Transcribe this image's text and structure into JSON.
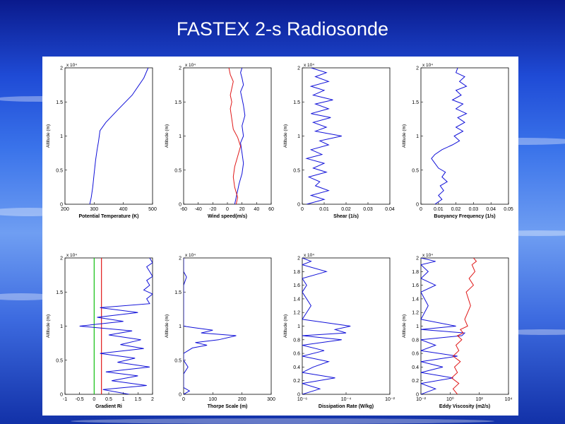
{
  "slide": {
    "title": "FASTEX 2-s Radiosonde"
  },
  "colors": {
    "blue": "#1010d8",
    "red": "#e01818",
    "green": "#10c010"
  },
  "chart_data": [
    {
      "type": "line",
      "xlabel": "Potential Temperature (K)",
      "ylabel": "Altitude (m)",
      "y_multiplier": "x 10⁴",
      "xlim": [
        200,
        500
      ],
      "ylim": [
        0,
        2
      ],
      "xticks": [
        "200",
        "300",
        "400",
        "500"
      ],
      "yticks": [
        "0",
        "0.5",
        "1",
        "1.5",
        "2"
      ],
      "series": [
        {
          "color": "#1010d8",
          "x": [
            285,
            290,
            295,
            300,
            305,
            310,
            315,
            320,
            340,
            380,
            430,
            470,
            485
          ],
          "y": [
            0,
            0.1,
            0.25,
            0.45,
            0.65,
            0.8,
            0.92,
            1.08,
            1.2,
            1.38,
            1.6,
            1.85,
            2.0
          ]
        }
      ]
    },
    {
      "type": "line",
      "xlabel": "Wind speed(m/s)",
      "ylabel": "Altitude (m)",
      "y_multiplier": "x 10⁴",
      "xlim": [
        -60,
        60
      ],
      "ylim": [
        0,
        2
      ],
      "xticks": [
        "-60",
        "-40",
        "-20",
        "0",
        "20",
        "40",
        "60"
      ],
      "yticks": [
        "0",
        "0.5",
        "1",
        "1.5",
        "2"
      ],
      "series": [
        {
          "color": "#1010d8",
          "x": [
            10,
            12,
            14,
            16,
            20,
            22,
            20,
            18,
            22,
            20,
            24,
            22,
            20,
            18,
            22,
            20,
            18,
            20
          ],
          "y": [
            0,
            0.1,
            0.2,
            0.3,
            0.45,
            0.6,
            0.75,
            0.9,
            1.0,
            1.15,
            1.3,
            1.45,
            1.55,
            1.65,
            1.75,
            1.85,
            1.93,
            2.0
          ]
        },
        {
          "color": "#e01818",
          "x": [
            12,
            14,
            10,
            8,
            10,
            14,
            18,
            14,
            8,
            6,
            4,
            6,
            4,
            6,
            8,
            4,
            2
          ],
          "y": [
            0,
            0.1,
            0.25,
            0.4,
            0.55,
            0.7,
            0.85,
            0.98,
            1.1,
            1.25,
            1.4,
            1.5,
            1.6,
            1.7,
            1.8,
            1.9,
            2.0
          ]
        }
      ]
    },
    {
      "type": "line",
      "xlabel": "Shear (1/s)",
      "ylabel": "Altitude (m)",
      "y_multiplier": "x 10⁴",
      "xlim": [
        0,
        0.04
      ],
      "ylim": [
        0,
        2
      ],
      "xticks": [
        "0",
        "0.01",
        "0.02",
        "0.03",
        "0.04"
      ],
      "yticks": [
        "0",
        "0.5",
        "1",
        "1.5",
        "2"
      ],
      "series": [
        {
          "color": "#1010d8",
          "x": [
            0.002,
            0.01,
            0.004,
            0.012,
            0.006,
            0.008,
            0.003,
            0.011,
            0.005,
            0.01,
            0.002,
            0.009,
            0.004,
            0.012,
            0.008,
            0.018,
            0.006,
            0.011,
            0.005,
            0.013,
            0.004,
            0.012,
            0.006,
            0.014,
            0.005,
            0.01,
            0.004,
            0.012,
            0.006,
            0.011,
            0.004
          ],
          "y": [
            0,
            0.07,
            0.13,
            0.2,
            0.27,
            0.33,
            0.4,
            0.47,
            0.53,
            0.6,
            0.67,
            0.73,
            0.8,
            0.87,
            0.93,
            1.0,
            1.07,
            1.13,
            1.2,
            1.27,
            1.33,
            1.4,
            1.47,
            1.53,
            1.6,
            1.67,
            1.73,
            1.8,
            1.87,
            1.93,
            2.0
          ]
        }
      ]
    },
    {
      "type": "line",
      "xlabel": "Buoyancy Frequency (1/s)",
      "ylabel": "Altitude (m)",
      "y_multiplier": "x 10⁴",
      "xlim": [
        0,
        0.05
      ],
      "ylim": [
        0,
        2
      ],
      "xticks": [
        "0",
        "0.01",
        "0.02",
        "0.03",
        "0.04",
        "0.05"
      ],
      "yticks": [
        "0",
        "0.5",
        "1",
        "1.5",
        "2"
      ],
      "series": [
        {
          "color": "#1010d8",
          "x": [
            0.008,
            0.012,
            0.01,
            0.013,
            0.011,
            0.015,
            0.012,
            0.014,
            0.01,
            0.008,
            0.006,
            0.008,
            0.012,
            0.018,
            0.022,
            0.019,
            0.024,
            0.02,
            0.025,
            0.021,
            0.026,
            0.02,
            0.024,
            0.018,
            0.023,
            0.02,
            0.026,
            0.022,
            0.025,
            0.02,
            0.021
          ],
          "y": [
            0,
            0.07,
            0.13,
            0.2,
            0.27,
            0.33,
            0.4,
            0.47,
            0.53,
            0.6,
            0.67,
            0.73,
            0.8,
            0.87,
            0.93,
            1.0,
            1.07,
            1.13,
            1.2,
            1.27,
            1.33,
            1.4,
            1.47,
            1.53,
            1.6,
            1.67,
            1.73,
            1.8,
            1.87,
            1.93,
            2.0
          ]
        }
      ]
    },
    {
      "type": "line",
      "xlabel": "Gradient Ri",
      "ylabel": "Altitude (m)",
      "y_multiplier": "x 10⁴",
      "xlim": [
        -1,
        2
      ],
      "ylim": [
        0,
        2
      ],
      "xticks": [
        "-1",
        "-0.5",
        "0",
        "0.5",
        "1",
        "1.5",
        "2"
      ],
      "yticks": [
        "0",
        "0.5",
        "1",
        "1.5",
        "2"
      ],
      "vlines": [
        {
          "x": 0,
          "color": "#10c010"
        },
        {
          "x": 0.25,
          "color": "#e01818"
        }
      ],
      "series": [
        {
          "color": "#1010d8",
          "x": [
            1.2,
            0.3,
            1.8,
            0.6,
            1.5,
            0.4,
            1.9,
            0.8,
            1.4,
            0.2,
            1.7,
            0.9,
            1.6,
            0.5,
            1.3,
            -0.5,
            1.0,
            0.1,
            1.5,
            0.2,
            1.9,
            1.8,
            2.0,
            1.7,
            1.9,
            1.8,
            2.0,
            1.9,
            1.8,
            2.0,
            1.9
          ],
          "y": [
            0,
            0.07,
            0.13,
            0.2,
            0.27,
            0.33,
            0.4,
            0.47,
            0.53,
            0.6,
            0.67,
            0.73,
            0.8,
            0.87,
            0.93,
            1.0,
            1.07,
            1.13,
            1.2,
            1.27,
            1.33,
            1.4,
            1.47,
            1.53,
            1.6,
            1.67,
            1.73,
            1.8,
            1.87,
            1.93,
            2.0
          ]
        }
      ]
    },
    {
      "type": "line",
      "xlabel": "Thorpe Scale (m)",
      "ylabel": "Altitude (m)",
      "y_multiplier": "x 10⁴",
      "xlim": [
        0,
        300
      ],
      "ylim": [
        0,
        2
      ],
      "xticks": [
        "0",
        "100",
        "200",
        "300"
      ],
      "yticks": [
        "0",
        "0.5",
        "1",
        "1.5",
        "2"
      ],
      "series": [
        {
          "color": "#1010d8",
          "x": [
            0,
            20,
            0,
            0,
            15,
            0,
            0,
            30,
            80,
            40,
            120,
            180,
            60,
            100,
            30,
            0,
            0,
            0,
            0,
            10,
            0,
            0
          ],
          "y": [
            0,
            0.05,
            0.1,
            0.3,
            0.4,
            0.5,
            0.6,
            0.68,
            0.72,
            0.76,
            0.8,
            0.86,
            0.9,
            0.94,
            0.98,
            1.0,
            1.2,
            1.5,
            1.6,
            1.72,
            1.8,
            2.0
          ]
        }
      ]
    },
    {
      "type": "line",
      "xlabel": "Dissipation Rate (W/kg)",
      "ylabel": "Altitude (m)",
      "y_multiplier": "x 10⁴",
      "xscale": "log",
      "xlim": [
        -6,
        -2
      ],
      "ylim": [
        0,
        2
      ],
      "xticks": [
        "10⁻⁶",
        "10⁻⁴",
        "10⁻²"
      ],
      "yticks": [
        "0",
        "0.2",
        "0.4",
        "0.6",
        "0.8",
        "1",
        "1.2",
        "1.4",
        "1.6",
        "1.8",
        "2"
      ],
      "series": [
        {
          "color": "#1010d8",
          "x": [
            -6,
            -5.2,
            -6,
            -4.5,
            -6,
            -5.5,
            -4.8,
            -6,
            -5.0,
            -6,
            -4.2,
            -6,
            -4.0,
            -4.5,
            -3.8,
            -6,
            -5.6,
            -6,
            -5.8,
            -6,
            -4.9,
            -6,
            -5.6,
            -6
          ],
          "y": [
            0,
            0.08,
            0.16,
            0.24,
            0.32,
            0.4,
            0.48,
            0.56,
            0.64,
            0.72,
            0.8,
            0.86,
            0.9,
            0.95,
            1.0,
            1.1,
            1.3,
            1.5,
            1.6,
            1.7,
            1.8,
            1.9,
            1.95,
            2.0
          ]
        }
      ]
    },
    {
      "type": "line",
      "xlabel": "Eddy Viscosity (m2/s)",
      "ylabel": "Altitude (m)",
      "y_multiplier": "x 10⁴",
      "xscale": "log",
      "xlim": [
        -2,
        4
      ],
      "ylim": [
        0,
        2
      ],
      "xticks": [
        "10⁻²",
        "10⁰",
        "10²",
        "10⁴"
      ],
      "yticks": [
        "0",
        "0.2",
        "0.4",
        "0.6",
        "0.8",
        "1",
        "1.2",
        "1.4",
        "1.6",
        "1.8",
        "2"
      ],
      "series": [
        {
          "color": "#1010d8",
          "x": [
            -2,
            -1,
            -2,
            0.2,
            -2,
            -0.5,
            -2,
            0.5,
            -2,
            -1,
            -2,
            0.8,
            1.0,
            -2,
            0.4,
            -2,
            -1.5,
            -2,
            -1,
            -2,
            -1.5,
            -2,
            -1,
            -2
          ],
          "y": [
            0,
            0.08,
            0.16,
            0.24,
            0.32,
            0.4,
            0.48,
            0.56,
            0.64,
            0.72,
            0.8,
            0.86,
            0.9,
            0.95,
            1.0,
            1.1,
            1.3,
            1.5,
            1.6,
            1.7,
            1.8,
            1.9,
            1.95,
            2.0
          ]
        },
        {
          "color": "#e01818",
          "x": [
            0.5,
            0.2,
            0.6,
            0.1,
            0.5,
            0.3,
            0.7,
            0.2,
            0.6,
            0.4,
            0.8,
            0.5,
            0.9,
            0.7,
            1.2,
            1.0,
            1.4,
            1.1,
            1.6,
            1.3,
            1.7,
            1.5,
            1.8,
            1.6
          ],
          "y": [
            0,
            0.08,
            0.16,
            0.24,
            0.32,
            0.4,
            0.48,
            0.56,
            0.64,
            0.72,
            0.8,
            0.86,
            0.9,
            0.95,
            1.0,
            1.1,
            1.3,
            1.5,
            1.6,
            1.7,
            1.8,
            1.9,
            1.95,
            2.0
          ]
        }
      ]
    }
  ]
}
